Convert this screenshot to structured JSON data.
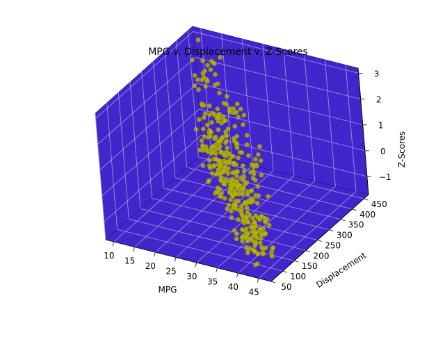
{
  "chart_data": {
    "type": "scatter",
    "projection": "3d",
    "title": "MPG v. Displacement v. Z-Scores",
    "xlabel": "MPG",
    "ylabel": "Displacement",
    "zlabel": "Z-Scores",
    "xlim": [
      8,
      48
    ],
    "ylim": [
      50,
      470
    ],
    "zlim": [
      -1.7,
      3.2
    ],
    "xticks": [
      10,
      15,
      20,
      25,
      30,
      35,
      40,
      45
    ],
    "yticks": [
      50,
      100,
      150,
      200,
      250,
      300,
      350,
      400,
      450
    ],
    "zticks": [
      -1,
      0,
      1,
      2,
      3
    ],
    "grid": true,
    "colors": {
      "pane": "#4226cc",
      "pane_edge": "#2a1690",
      "grid": "#b8b0e8",
      "point": "#b8b800",
      "point_edge": "#8c8c00"
    },
    "series": [
      {
        "marker": "o",
        "points": []
      }
    ]
  }
}
